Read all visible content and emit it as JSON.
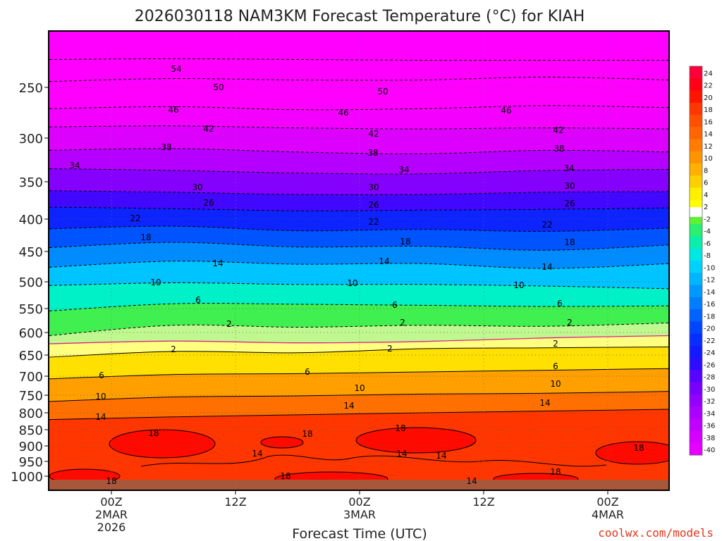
{
  "chart_data": {
    "type": "heatmap",
    "title": "2026030118 NAM3KM Forecast Temperature (°C) for KIAH",
    "xlabel": "Forecast Time (UTC)",
    "ylabel": "",
    "credit": "coolwx.com/models",
    "y_axis": {
      "scale": "pressure (inverted, top = low pressure)",
      "range": [
        1000,
        200
      ],
      "ticks": [
        250,
        300,
        350,
        400,
        450,
        500,
        550,
        600,
        650,
        700,
        750,
        800,
        850,
        900,
        950,
        1000
      ]
    },
    "x_axis": {
      "range": [
        "2026-03-01 18Z",
        "2026-03-04 06Z"
      ],
      "ticks": [
        {
          "time": "2026-03-02 00Z",
          "label_lines": [
            "00Z",
            "2MAR",
            "2026"
          ]
        },
        {
          "time": "2026-03-02 12Z",
          "label_lines": [
            "12Z"
          ]
        },
        {
          "time": "2026-03-03 00Z",
          "label_lines": [
            "00Z",
            "3MAR"
          ]
        },
        {
          "time": "2026-03-03 12Z",
          "label_lines": [
            "12Z"
          ]
        },
        {
          "time": "2026-03-04 00Z",
          "label_lines": [
            "00Z",
            "4MAR"
          ]
        }
      ]
    },
    "grid": true,
    "colorbar": {
      "placement": "right",
      "labels": [
        "24",
        "22",
        "20",
        "18",
        "16",
        "14",
        "12",
        "10",
        "8",
        "6",
        "4",
        "2",
        "-2",
        "-4",
        "-6",
        "-8",
        "-10",
        "-12",
        "-14",
        "-16",
        "-18",
        "-20",
        "-22",
        "-24",
        "-26",
        "-28",
        "-30",
        "-32",
        "-34",
        "-36",
        "-38",
        "-40"
      ]
    },
    "contours": [
      {
        "temp": -54,
        "hPa": [
          212,
          211,
          212,
          213,
          213,
          213
        ]
      },
      {
        "temp": -50,
        "hPa": [
          242,
          238,
          240,
          240,
          236,
          240
        ]
      },
      {
        "temp": -46,
        "hPa": [
          271,
          269,
          272,
          271,
          268,
          270
        ]
      },
      {
        "temp": -42,
        "hPa": [
          289,
          288,
          290,
          291,
          290,
          291
        ]
      },
      {
        "temp": -38,
        "hPa": [
          314,
          312,
          316,
          318,
          314,
          316
        ]
      },
      {
        "temp": -34,
        "hPa": [
          335,
          337,
          340,
          341,
          337,
          336
        ]
      },
      {
        "temp": -30,
        "hPa": [
          362,
          364,
          367,
          367,
          364,
          363
        ]
      },
      {
        "temp": -26,
        "hPa": [
          384,
          386,
          389,
          388,
          387,
          385
        ]
      },
      {
        "temp": -22,
        "hPa": [
          415,
          411,
          418,
          416,
          419,
          414
        ]
      },
      {
        "temp": -18,
        "hPa": [
          444,
          436,
          443,
          442,
          448,
          440
        ]
      },
      {
        "temp": -14,
        "hPa": [
          476,
          466,
          471,
          470,
          478,
          470
        ]
      },
      {
        "temp": -10,
        "hPa": [
          507,
          502,
          505,
          505,
          508,
          513
        ]
      },
      {
        "temp": -6,
        "hPa": [
          555,
          541,
          542,
          544,
          546,
          545
        ]
      },
      {
        "temp": -2,
        "hPa": [
          607,
          585,
          589,
          585,
          587,
          580
        ]
      },
      {
        "temp": 0,
        "hPa": [
          625,
          619,
          623,
          620,
          612,
          607
        ]
      },
      {
        "temp": 2,
        "hPa": [
          655,
          642,
          645,
          636,
          634,
          632
        ]
      },
      {
        "temp": 6,
        "hPa": [
          707,
          696,
          694,
          690,
          686,
          682
        ]
      },
      {
        "temp": 10,
        "hPa": [
          768,
          755,
          752,
          747,
          745,
          740
        ]
      },
      {
        "temp": 14,
        "hPa": [
          820,
          812,
          806,
          800,
          795,
          790
        ]
      }
    ],
    "warm_pockets_18C": [
      {
        "hPa_range": [
          860,
          935
        ],
        "time": "2026-03-02 03Z"
      },
      {
        "hPa_range": [
          860,
          920
        ],
        "time": "2026-03-03 03Z"
      },
      {
        "hPa_range": [
          870,
          960
        ],
        "time": "2026-03-04 05Z"
      }
    ],
    "contour_label_values": [
      "54",
      "50",
      "46",
      "42",
      "38",
      "34",
      "30",
      "26",
      "22",
      "18",
      "14",
      "10",
      "6",
      "2",
      "18",
      "14",
      "10",
      "6",
      "2"
    ]
  },
  "colors": {
    "ground": "#a9573b",
    "freezing_line": "#e0208a",
    "background": "#ffffff"
  }
}
